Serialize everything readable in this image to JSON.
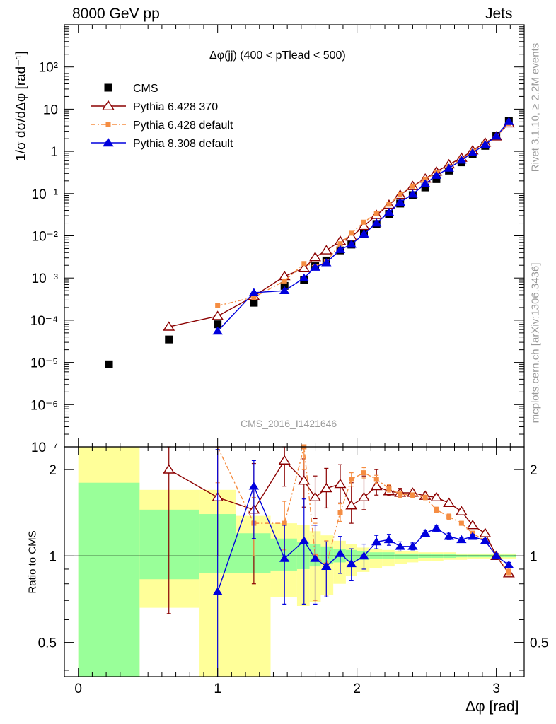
{
  "header": {
    "energy_label": "8000 GeV pp",
    "category_label": "Jets",
    "analysis_id": "CMS_2016_I1421646",
    "side_label_top": "Rivet 3.1.10, ≥ 2.2M events",
    "side_label_bottom": "mcplots.cern.ch [arXiv:1306.3436]"
  },
  "colors": {
    "cms": "#000000",
    "pythia6_370": "#8b0000",
    "pythia6_default": "#f58d42",
    "pythia8_default": "#0000dd",
    "band_yellow": "#ffff99",
    "band_green": "#99ff99"
  },
  "chart_data": [
    {
      "type": "scatter",
      "title": "Δφ(jj) (400 < pTlead <  500)",
      "xlabel": "Δφ [rad]",
      "ylabel": "1/σ dσ/dΔφ [rad⁻¹]",
      "y_scale": "log",
      "xlim": [
        -0.1,
        3.2
      ],
      "ylim": [
        1e-07,
        1000
      ],
      "x_ticks": [
        "0",
        "1",
        "2",
        "3"
      ],
      "y_ticks": [
        "10⁻⁷",
        "10⁻⁶",
        "10⁻⁵",
        "10⁻⁴",
        "10⁻³",
        "10⁻²",
        "10⁻¹",
        "1",
        "10",
        "10²"
      ],
      "legend_position": "top-left",
      "series": [
        {
          "name": "CMS",
          "marker": "filled-square",
          "x": [
            0.22,
            0.65,
            1.0,
            1.26,
            1.48,
            1.62,
            1.7,
            1.78,
            1.88,
            1.96,
            2.05,
            2.14,
            2.23,
            2.31,
            2.4,
            2.49,
            2.57,
            2.66,
            2.75,
            2.83,
            2.92,
            3.0,
            3.09
          ],
          "y": [
            9e-06,
            3.5e-05,
            8e-05,
            0.00026,
            0.00065,
            0.0009,
            0.0019,
            0.0026,
            0.0045,
            0.0062,
            0.011,
            0.019,
            0.033,
            0.058,
            0.092,
            0.14,
            0.22,
            0.35,
            0.55,
            0.85,
            1.35,
            2.3,
            5.3
          ]
        },
        {
          "name": "Pythia 6.428 370",
          "marker": "open-triangle",
          "x": [
            0.65,
            1.0,
            1.26,
            1.48,
            1.62,
            1.7,
            1.78,
            1.88,
            1.96,
            2.05,
            2.14,
            2.23,
            2.31,
            2.4,
            2.49,
            2.57,
            2.66,
            2.75,
            2.83,
            2.92,
            3.0,
            3.09
          ],
          "y": [
            7e-05,
            0.000125,
            0.00037,
            0.0011,
            0.0017,
            0.0031,
            0.0045,
            0.0075,
            0.0095,
            0.017,
            0.031,
            0.054,
            0.093,
            0.15,
            0.225,
            0.33,
            0.49,
            0.7,
            1.05,
            1.6,
            2.25,
            4.6
          ]
        },
        {
          "name": "Pythia 6.428 default",
          "marker": "filled-square-small",
          "x": [
            1.0,
            1.26,
            1.48,
            1.62,
            1.7,
            1.78,
            1.88,
            1.96,
            2.05,
            2.14,
            2.23,
            2.31,
            2.4,
            2.49,
            2.57,
            2.66,
            2.75,
            2.83,
            2.92,
            3.0,
            3.09
          ],
          "y": [
            0.00022,
            0.00035,
            0.00085,
            0.0022,
            0.0019,
            0.0024,
            0.0065,
            0.0115,
            0.021,
            0.034,
            0.056,
            0.095,
            0.15,
            0.22,
            0.31,
            0.44,
            0.65,
            1.0,
            1.55,
            2.25,
            4.6
          ]
        },
        {
          "name": "Pythia 8.308 default",
          "marker": "filled-triangle",
          "x": [
            1.0,
            1.26,
            1.48,
            1.62,
            1.7,
            1.78,
            1.88,
            1.96,
            2.05,
            2.14,
            2.23,
            2.31,
            2.4,
            2.49,
            2.57,
            2.66,
            2.75,
            2.83,
            2.92,
            3.0,
            3.09
          ],
          "y": [
            5.5e-05,
            0.00045,
            0.0005,
            0.001,
            0.0018,
            0.0023,
            0.0047,
            0.0063,
            0.011,
            0.02,
            0.036,
            0.062,
            0.097,
            0.17,
            0.27,
            0.4,
            0.62,
            0.93,
            1.45,
            2.3,
            5.1
          ]
        }
      ]
    },
    {
      "type": "line",
      "xlabel": "Δφ [rad]",
      "ylabel": "Ratio to CMS",
      "y_scale": "log",
      "xlim": [
        -0.1,
        3.2
      ],
      "ylim": [
        0.38,
        2.4
      ],
      "x_ticks": [
        "0",
        "1",
        "2",
        "3"
      ],
      "y_ticks": [
        "0.5",
        "1",
        "2"
      ],
      "reference_line": 1,
      "uncertainty_bands": {
        "x_edges": [
          0,
          0.44,
          0.87,
          1.13,
          1.38,
          1.57,
          1.66,
          1.74,
          1.83,
          1.92,
          2.0,
          2.09,
          2.18,
          2.27,
          2.36,
          2.44,
          2.53,
          2.62,
          2.71,
          2.79,
          2.88,
          2.97,
          3.06,
          3.14
        ],
        "yellow_low": [
          0.38,
          0.66,
          0.38,
          0.38,
          0.72,
          0.67,
          0.69,
          0.73,
          0.8,
          0.85,
          0.88,
          0.91,
          0.92,
          0.94,
          0.95,
          0.96,
          0.96,
          0.97,
          0.97,
          0.98,
          0.98,
          0.98,
          0.98
        ],
        "yellow_high": [
          2.4,
          1.7,
          1.7,
          1.38,
          1.3,
          1.28,
          1.22,
          1.18,
          1.13,
          1.1,
          1.07,
          1.06,
          1.05,
          1.04,
          1.04,
          1.03,
          1.03,
          1.03,
          1.02,
          1.02,
          1.02,
          1.02,
          1.02
        ],
        "green_low": [
          0.38,
          0.83,
          0.87,
          0.87,
          0.89,
          0.9,
          0.92,
          0.94,
          0.95,
          0.96,
          0.97,
          0.98,
          0.98,
          0.98,
          0.98,
          0.985,
          0.985,
          0.985,
          0.99,
          0.99,
          0.99,
          0.99,
          0.99
        ],
        "green_high": [
          1.8,
          1.45,
          1.4,
          1.2,
          1.15,
          1.12,
          1.1,
          1.08,
          1.06,
          1.05,
          1.04,
          1.03,
          1.03,
          1.02,
          1.02,
          1.02,
          1.015,
          1.015,
          1.01,
          1.01,
          1.01,
          1.01,
          1.01
        ]
      },
      "series": [
        {
          "name": "Pythia 6.428 370",
          "x": [
            0.65,
            1.0,
            1.26,
            1.48,
            1.62,
            1.7,
            1.78,
            1.88,
            1.96,
            2.05,
            2.14,
            2.23,
            2.31,
            2.4,
            2.49,
            2.57,
            2.66,
            2.75,
            2.83,
            2.92,
            3.0,
            3.09
          ],
          "y": [
            2.0,
            1.6,
            1.45,
            2.15,
            1.83,
            1.6,
            1.72,
            1.78,
            1.5,
            1.6,
            1.75,
            1.68,
            1.66,
            1.66,
            1.62,
            1.6,
            1.53,
            1.43,
            1.28,
            1.2,
            1.0,
            0.87
          ],
          "err_low": [
            1.37,
            0.6,
            0.65,
            0.4,
            0.35,
            0.25,
            0.25,
            0.25,
            0.2,
            0.15,
            0.12,
            0.06,
            0.06,
            0.05,
            0.04,
            0.04,
            0.03,
            0.03,
            0.02,
            0.02,
            0.02,
            0.02
          ],
          "err_high": [
            0.5,
            0.8,
            0.65,
            0.25,
            0.35,
            0.3,
            0.3,
            0.3,
            0.3,
            0.3,
            0.25,
            0.08,
            0.06,
            0.05,
            0.04,
            0.04,
            0.03,
            0.03,
            0.02,
            0.02,
            0.02,
            0.02
          ]
        },
        {
          "name": "Pythia 6.428 default",
          "x": [
            1.0,
            1.26,
            1.48,
            1.62,
            1.7,
            1.78,
            1.88,
            1.96,
            2.05,
            2.14,
            2.23,
            2.31,
            2.4,
            2.49,
            2.57,
            2.66,
            2.75,
            2.83,
            2.92,
            3.0,
            3.09
          ],
          "y": [
            2.6,
            1.3,
            1.3,
            2.4,
            1.0,
            0.93,
            1.42,
            1.85,
            1.95,
            1.85,
            1.72,
            1.64,
            1.63,
            1.6,
            1.45,
            1.37,
            1.3,
            1.2,
            1.13,
            1.0,
            0.88
          ],
          "err_low": [
            0.8,
            0.3,
            0.25,
            0.4,
            0.3,
            0.2,
            0.1,
            0.1,
            0.08,
            0.06,
            0.05,
            0.04,
            0.03,
            0.03,
            0.03,
            0.03,
            0.02,
            0.02,
            0.02,
            0.02,
            0.02
          ],
          "err_high": [
            0.8,
            0.3,
            0.25,
            0.4,
            0.3,
            0.2,
            0.1,
            0.1,
            0.08,
            0.06,
            0.05,
            0.04,
            0.03,
            0.03,
            0.03,
            0.03,
            0.02,
            0.02,
            0.02,
            0.02,
            0.02
          ]
        },
        {
          "name": "Pythia 8.308 default",
          "x": [
            1.0,
            1.26,
            1.48,
            1.62,
            1.7,
            1.78,
            1.88,
            1.96,
            2.05,
            2.14,
            2.23,
            2.31,
            2.4,
            2.49,
            2.57,
            2.66,
            2.75,
            2.83,
            2.92,
            3.0,
            3.09
          ],
          "y": [
            0.75,
            1.75,
            0.98,
            1.13,
            0.98,
            0.92,
            1.02,
            0.94,
            1.0,
            1.12,
            1.14,
            1.08,
            1.08,
            1.2,
            1.25,
            1.17,
            1.14,
            1.17,
            1.13,
            1.0,
            0.93
          ],
          "err_low": [
            0.75,
            0.6,
            0.3,
            0.45,
            0.3,
            0.2,
            0.15,
            0.12,
            0.1,
            0.06,
            0.05,
            0.04,
            0.03,
            0.03,
            0.03,
            0.03,
            0.02,
            0.02,
            0.02,
            0.02,
            0.02
          ],
          "err_high": [
            1.6,
            0.4,
            0.3,
            0.45,
            0.3,
            0.2,
            0.15,
            0.12,
            0.1,
            0.06,
            0.05,
            0.04,
            0.03,
            0.03,
            0.03,
            0.03,
            0.02,
            0.02,
            0.02,
            0.02,
            0.02
          ]
        }
      ]
    }
  ]
}
